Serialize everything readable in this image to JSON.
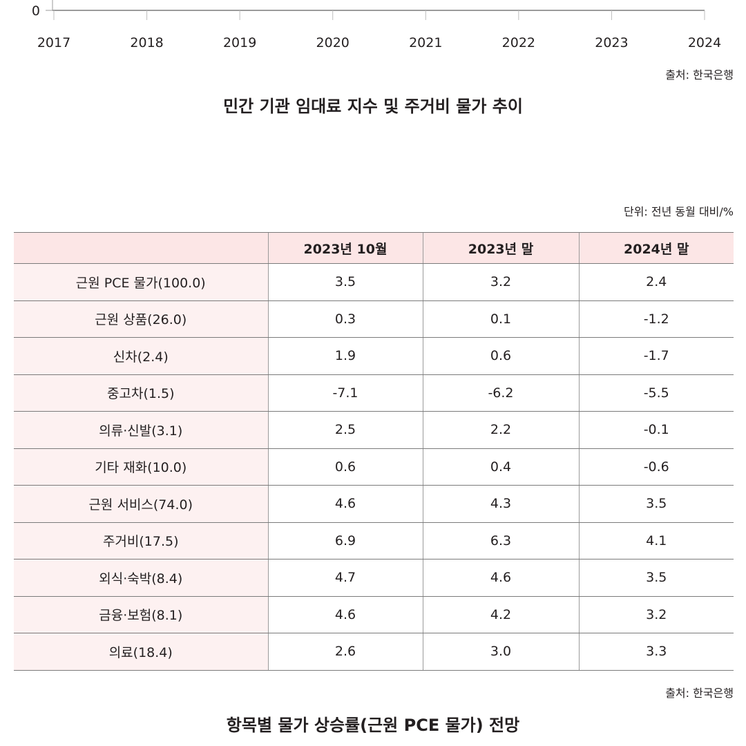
{
  "chart_data": {
    "type": "line",
    "title": "민간 기관 임대료 지수 및 주거비 물가 추이",
    "x_ticks": [
      "2017",
      "2018",
      "2019",
      "2020",
      "2021",
      "2022",
      "2023",
      "2024"
    ],
    "y_ticks_visible": [
      "0"
    ],
    "xlim": [
      2017,
      2024
    ],
    "source": "출처: 한국은행"
  },
  "table": {
    "unit": "단위: 전년 동월 대비/%",
    "headers": [
      "",
      "2023년 10월",
      "2023년 말",
      "2024년 말"
    ],
    "rows": [
      [
        "근원 PCE 물가(100.0)",
        "3.5",
        "3.2",
        "2.4"
      ],
      [
        "근원 상품(26.0)",
        "0.3",
        "0.1",
        "-1.2"
      ],
      [
        "신차(2.4)",
        "1.9",
        "0.6",
        "-1.7"
      ],
      [
        "중고차(1.5)",
        "-7.1",
        "-6.2",
        "-5.5"
      ],
      [
        "의류·신발(3.1)",
        "2.5",
        "2.2",
        "-0.1"
      ],
      [
        "기타 재화(10.0)",
        "0.6",
        "0.4",
        "-0.6"
      ],
      [
        "근원 서비스(74.0)",
        "4.6",
        "4.3",
        "3.5"
      ],
      [
        "주거비(17.5)",
        "6.9",
        "6.3",
        "4.1"
      ],
      [
        "외식·숙박(8.4)",
        "4.7",
        "4.6",
        "3.5"
      ],
      [
        "금융·보험(8.1)",
        "4.6",
        "4.2",
        "3.2"
      ],
      [
        "의료(18.4)",
        "2.6",
        "3.0",
        "3.3"
      ]
    ],
    "source": "출처: 한국은행",
    "title": "항목별 물가 상승률(근원 PCE 물가) 전망"
  }
}
